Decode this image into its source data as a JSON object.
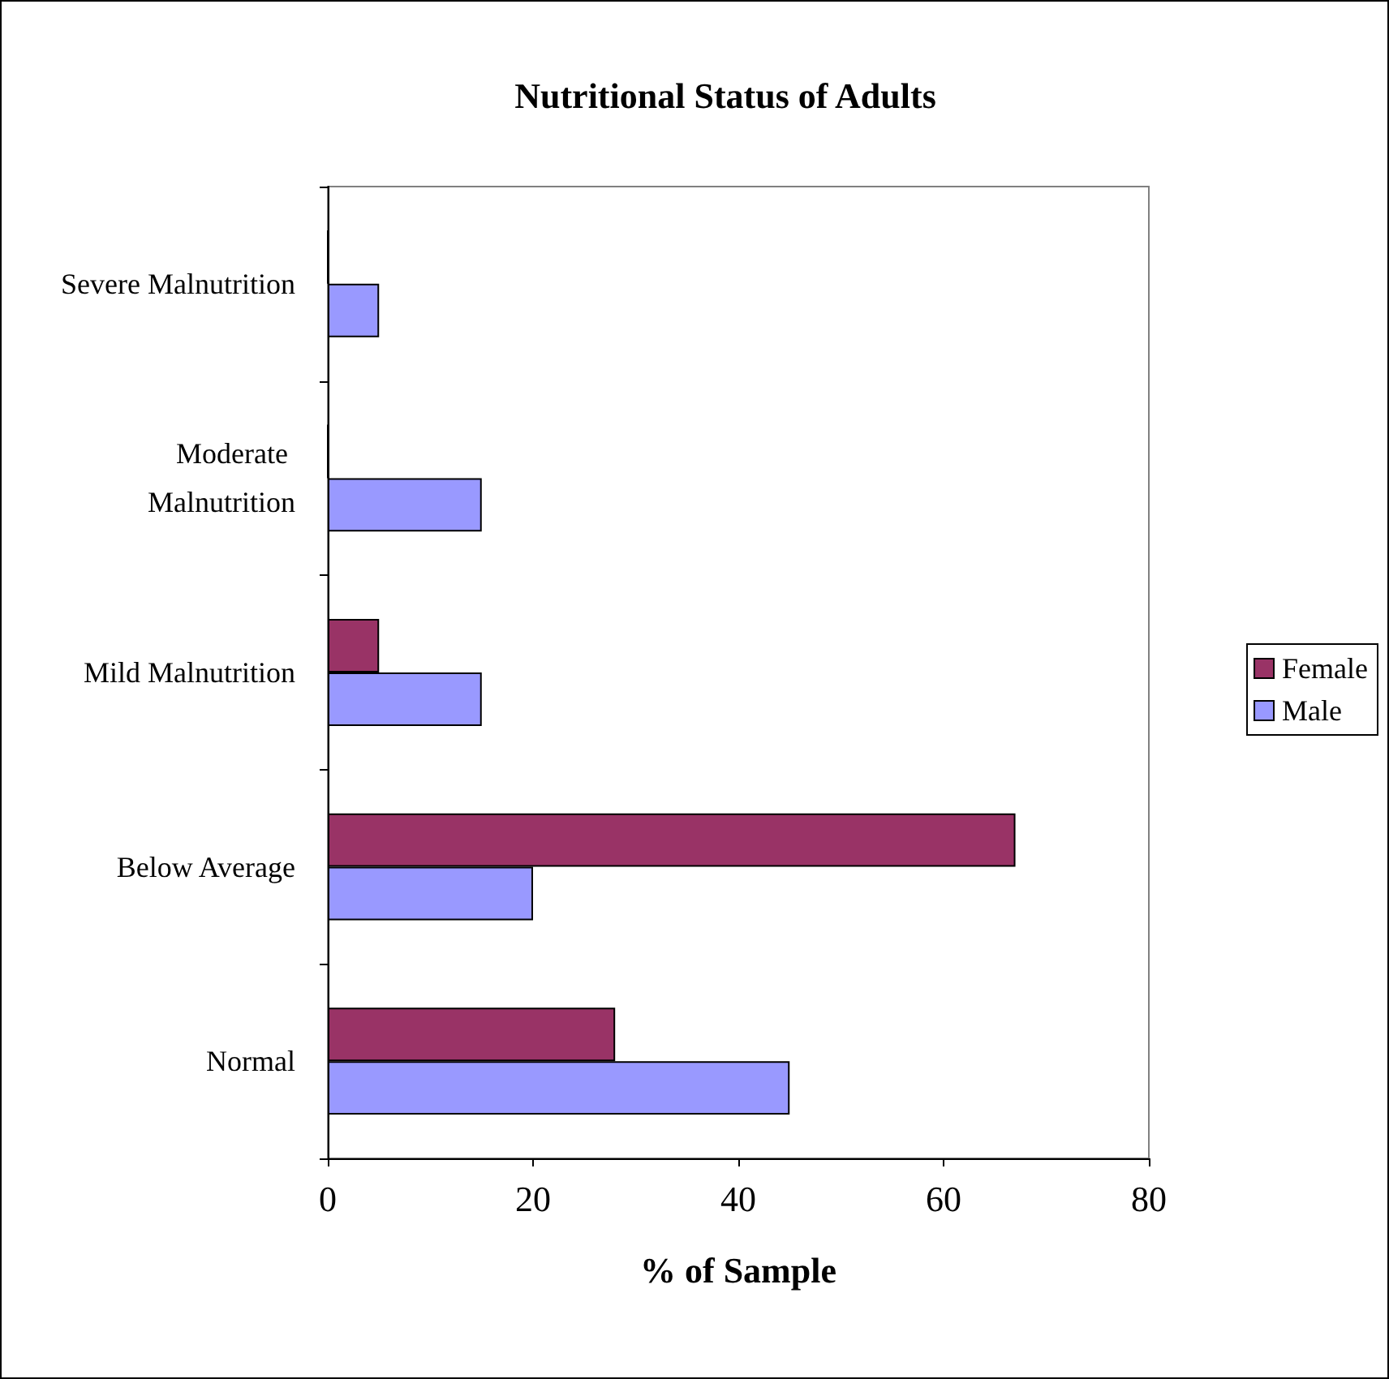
{
  "chart_data": {
    "type": "bar",
    "orientation": "horizontal",
    "title": "Nutritional Status of Adults",
    "xlabel": "% of Sample",
    "categories": [
      "Severe Malnutrition",
      "Moderate Malnutrition",
      "Mild Malnutrition",
      "Below Average",
      "Normal"
    ],
    "series": [
      {
        "name": "Female",
        "color": "#993366",
        "values": [
          0,
          0,
          5,
          67,
          28
        ]
      },
      {
        "name": "Male",
        "color": "#9999ff",
        "values": [
          5,
          15,
          15,
          20,
          45
        ]
      }
    ],
    "xlim": [
      0,
      80
    ],
    "xticks": [
      0,
      20,
      40,
      60,
      80
    ],
    "grid": false,
    "legend": "right"
  }
}
